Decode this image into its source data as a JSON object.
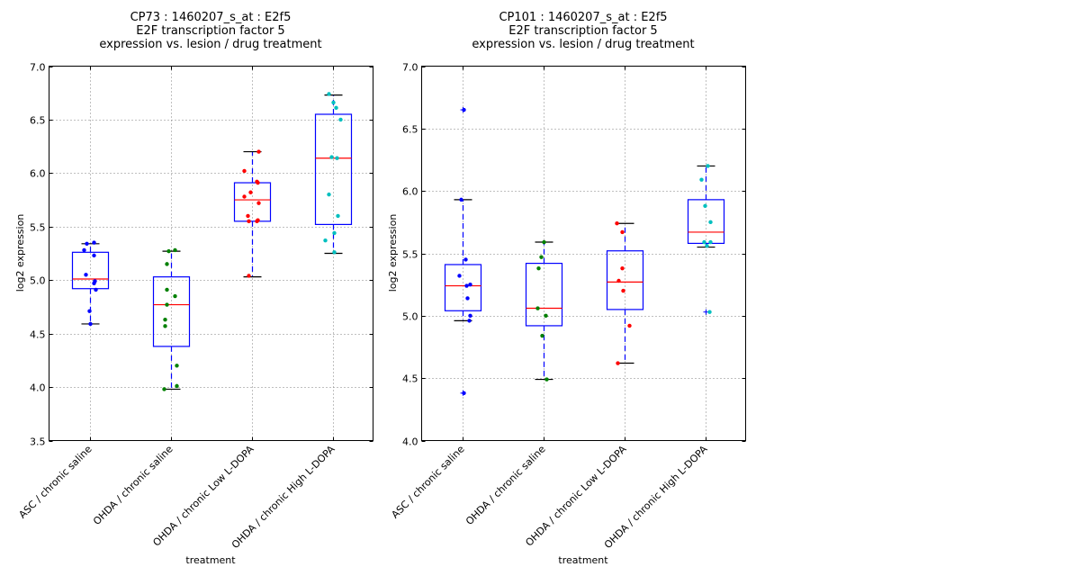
{
  "chart_data": [
    {
      "type": "box",
      "title": [
        "CP73 : 1460207_s_at : E2f5",
        "E2F transcription factor 5",
        "expression vs. lesion / drug treatment"
      ],
      "xlabel": "treatment",
      "ylabel": "log2 expression",
      "ylim": [
        3.5,
        7.0
      ],
      "yticks": [
        "3.5",
        "4.0",
        "4.5",
        "5.0",
        "5.5",
        "6.0",
        "6.5",
        "7.0"
      ],
      "yticks_values": [
        3.5,
        4.0,
        4.5,
        5.0,
        5.5,
        6.0,
        6.5,
        7.0
      ],
      "grid": true,
      "categories": [
        "ASC / chronic saline",
        "OHDA / chronic saline",
        "OHDA / chronic Low L-DOPA",
        "OHDA / chronic High L-DOPA"
      ],
      "series": [
        {
          "name": "ASC / chronic saline",
          "color": "#0000ff",
          "whisker_low": 4.59,
          "q1": 4.92,
          "median": 5.01,
          "q3": 5.26,
          "whisker_high": 5.34,
          "outliers": [],
          "points": [
            5.34,
            5.35,
            5.28,
            5.23,
            5.05,
            4.99,
            4.97,
            4.91,
            4.71,
            4.59
          ],
          "jitter": [
            -4,
            4,
            -7,
            4,
            -5,
            5,
            4,
            6,
            -1,
            0
          ]
        },
        {
          "name": "OHDA / chronic saline",
          "color": "#008000",
          "whisker_low": 3.98,
          "q1": 4.38,
          "median": 4.77,
          "q3": 5.03,
          "whisker_high": 5.27,
          "outliers": [],
          "points": [
            5.27,
            5.28,
            5.15,
            4.91,
            4.85,
            4.77,
            4.63,
            4.57,
            4.2,
            4.01,
            3.98
          ],
          "jitter": [
            -3,
            4,
            -5,
            -5,
            4,
            -5,
            -7,
            -7,
            6,
            6,
            -8
          ]
        },
        {
          "name": "OHDA / chronic Low L-DOPA",
          "color": "#ff0000",
          "whisker_low": 5.03,
          "q1": 5.55,
          "median": 5.75,
          "q3": 5.91,
          "whisker_high": 6.2,
          "outliers": [],
          "points": [
            6.2,
            6.02,
            5.92,
            5.91,
            5.82,
            5.78,
            5.72,
            5.6,
            5.55,
            5.55,
            5.56,
            5.04
          ],
          "jitter": [
            7,
            -9,
            5,
            6,
            -2,
            -9,
            7,
            -5,
            -4,
            5,
            6,
            -4
          ]
        },
        {
          "name": "OHDA / chronic High L-DOPA",
          "color": "#00bfbf",
          "whisker_low": 5.25,
          "q1": 5.52,
          "median": 6.14,
          "q3": 6.55,
          "whisker_high": 6.73,
          "outliers": [],
          "points": [
            6.74,
            6.66,
            6.61,
            6.5,
            6.15,
            6.14,
            5.8,
            5.6,
            5.44,
            5.37,
            5.26
          ],
          "jitter": [
            -5,
            0,
            3,
            8,
            -2,
            4,
            -5,
            5,
            1,
            -9,
            1
          ]
        }
      ]
    },
    {
      "type": "box",
      "title": [
        "CP101 : 1460207_s_at : E2f5",
        "E2F transcription factor 5",
        "expression vs. lesion / drug treatment"
      ],
      "xlabel": "treatment",
      "ylabel": "log2 expression",
      "ylim": [
        4.0,
        7.0
      ],
      "yticks": [
        "4.0",
        "4.5",
        "5.0",
        "5.5",
        "6.0",
        "6.5",
        "7.0"
      ],
      "yticks_values": [
        4.0,
        4.5,
        5.0,
        5.5,
        6.0,
        6.5,
        7.0
      ],
      "grid": true,
      "categories": [
        "ASC / chronic saline",
        "OHDA / chronic saline",
        "OHDA / chronic Low L-DOPA",
        "OHDA / chronic High L-DOPA"
      ],
      "series": [
        {
          "name": "ASC / chronic saline",
          "color": "#0000ff",
          "whisker_low": 4.96,
          "q1": 5.04,
          "median": 5.24,
          "q3": 5.41,
          "whisker_high": 5.93,
          "outliers": [
            6.65,
            4.38
          ],
          "points": [
            5.93,
            5.45,
            5.32,
            5.24,
            5.25,
            5.14,
            5.0,
            4.96,
            6.65,
            4.38
          ],
          "jitter": [
            -2,
            3,
            -4,
            4,
            8,
            5,
            8,
            7,
            1,
            1
          ]
        },
        {
          "name": "OHDA / chronic saline",
          "color": "#008000",
          "whisker_low": 4.49,
          "q1": 4.92,
          "median": 5.06,
          "q3": 5.42,
          "whisker_high": 5.59,
          "outliers": [],
          "points": [
            5.59,
            5.47,
            5.38,
            5.06,
            5.0,
            4.84,
            4.49
          ],
          "jitter": [
            0,
            -3,
            -6,
            -7,
            2,
            -2,
            3
          ]
        },
        {
          "name": "OHDA / chronic Low L-DOPA",
          "color": "#ff0000",
          "whisker_low": 4.62,
          "q1": 5.05,
          "median": 5.27,
          "q3": 5.52,
          "whisker_high": 5.74,
          "outliers": [],
          "points": [
            5.74,
            5.67,
            5.38,
            5.28,
            5.2,
            4.92,
            4.62
          ],
          "jitter": [
            -9,
            -3,
            -3,
            -7,
            -2,
            5,
            -8
          ]
        },
        {
          "name": "OHDA / chronic High L-DOPA",
          "color": "#00bfbf",
          "whisker_low": 5.55,
          "q1": 5.58,
          "median": 5.67,
          "q3": 5.93,
          "whisker_high": 6.2,
          "outliers": [
            5.03
          ],
          "points": [
            6.2,
            6.09,
            5.88,
            5.75,
            5.59,
            5.59,
            5.56,
            5.03
          ],
          "jitter": [
            2,
            -5,
            -1,
            5,
            -2,
            5,
            1,
            4
          ]
        }
      ]
    }
  ]
}
